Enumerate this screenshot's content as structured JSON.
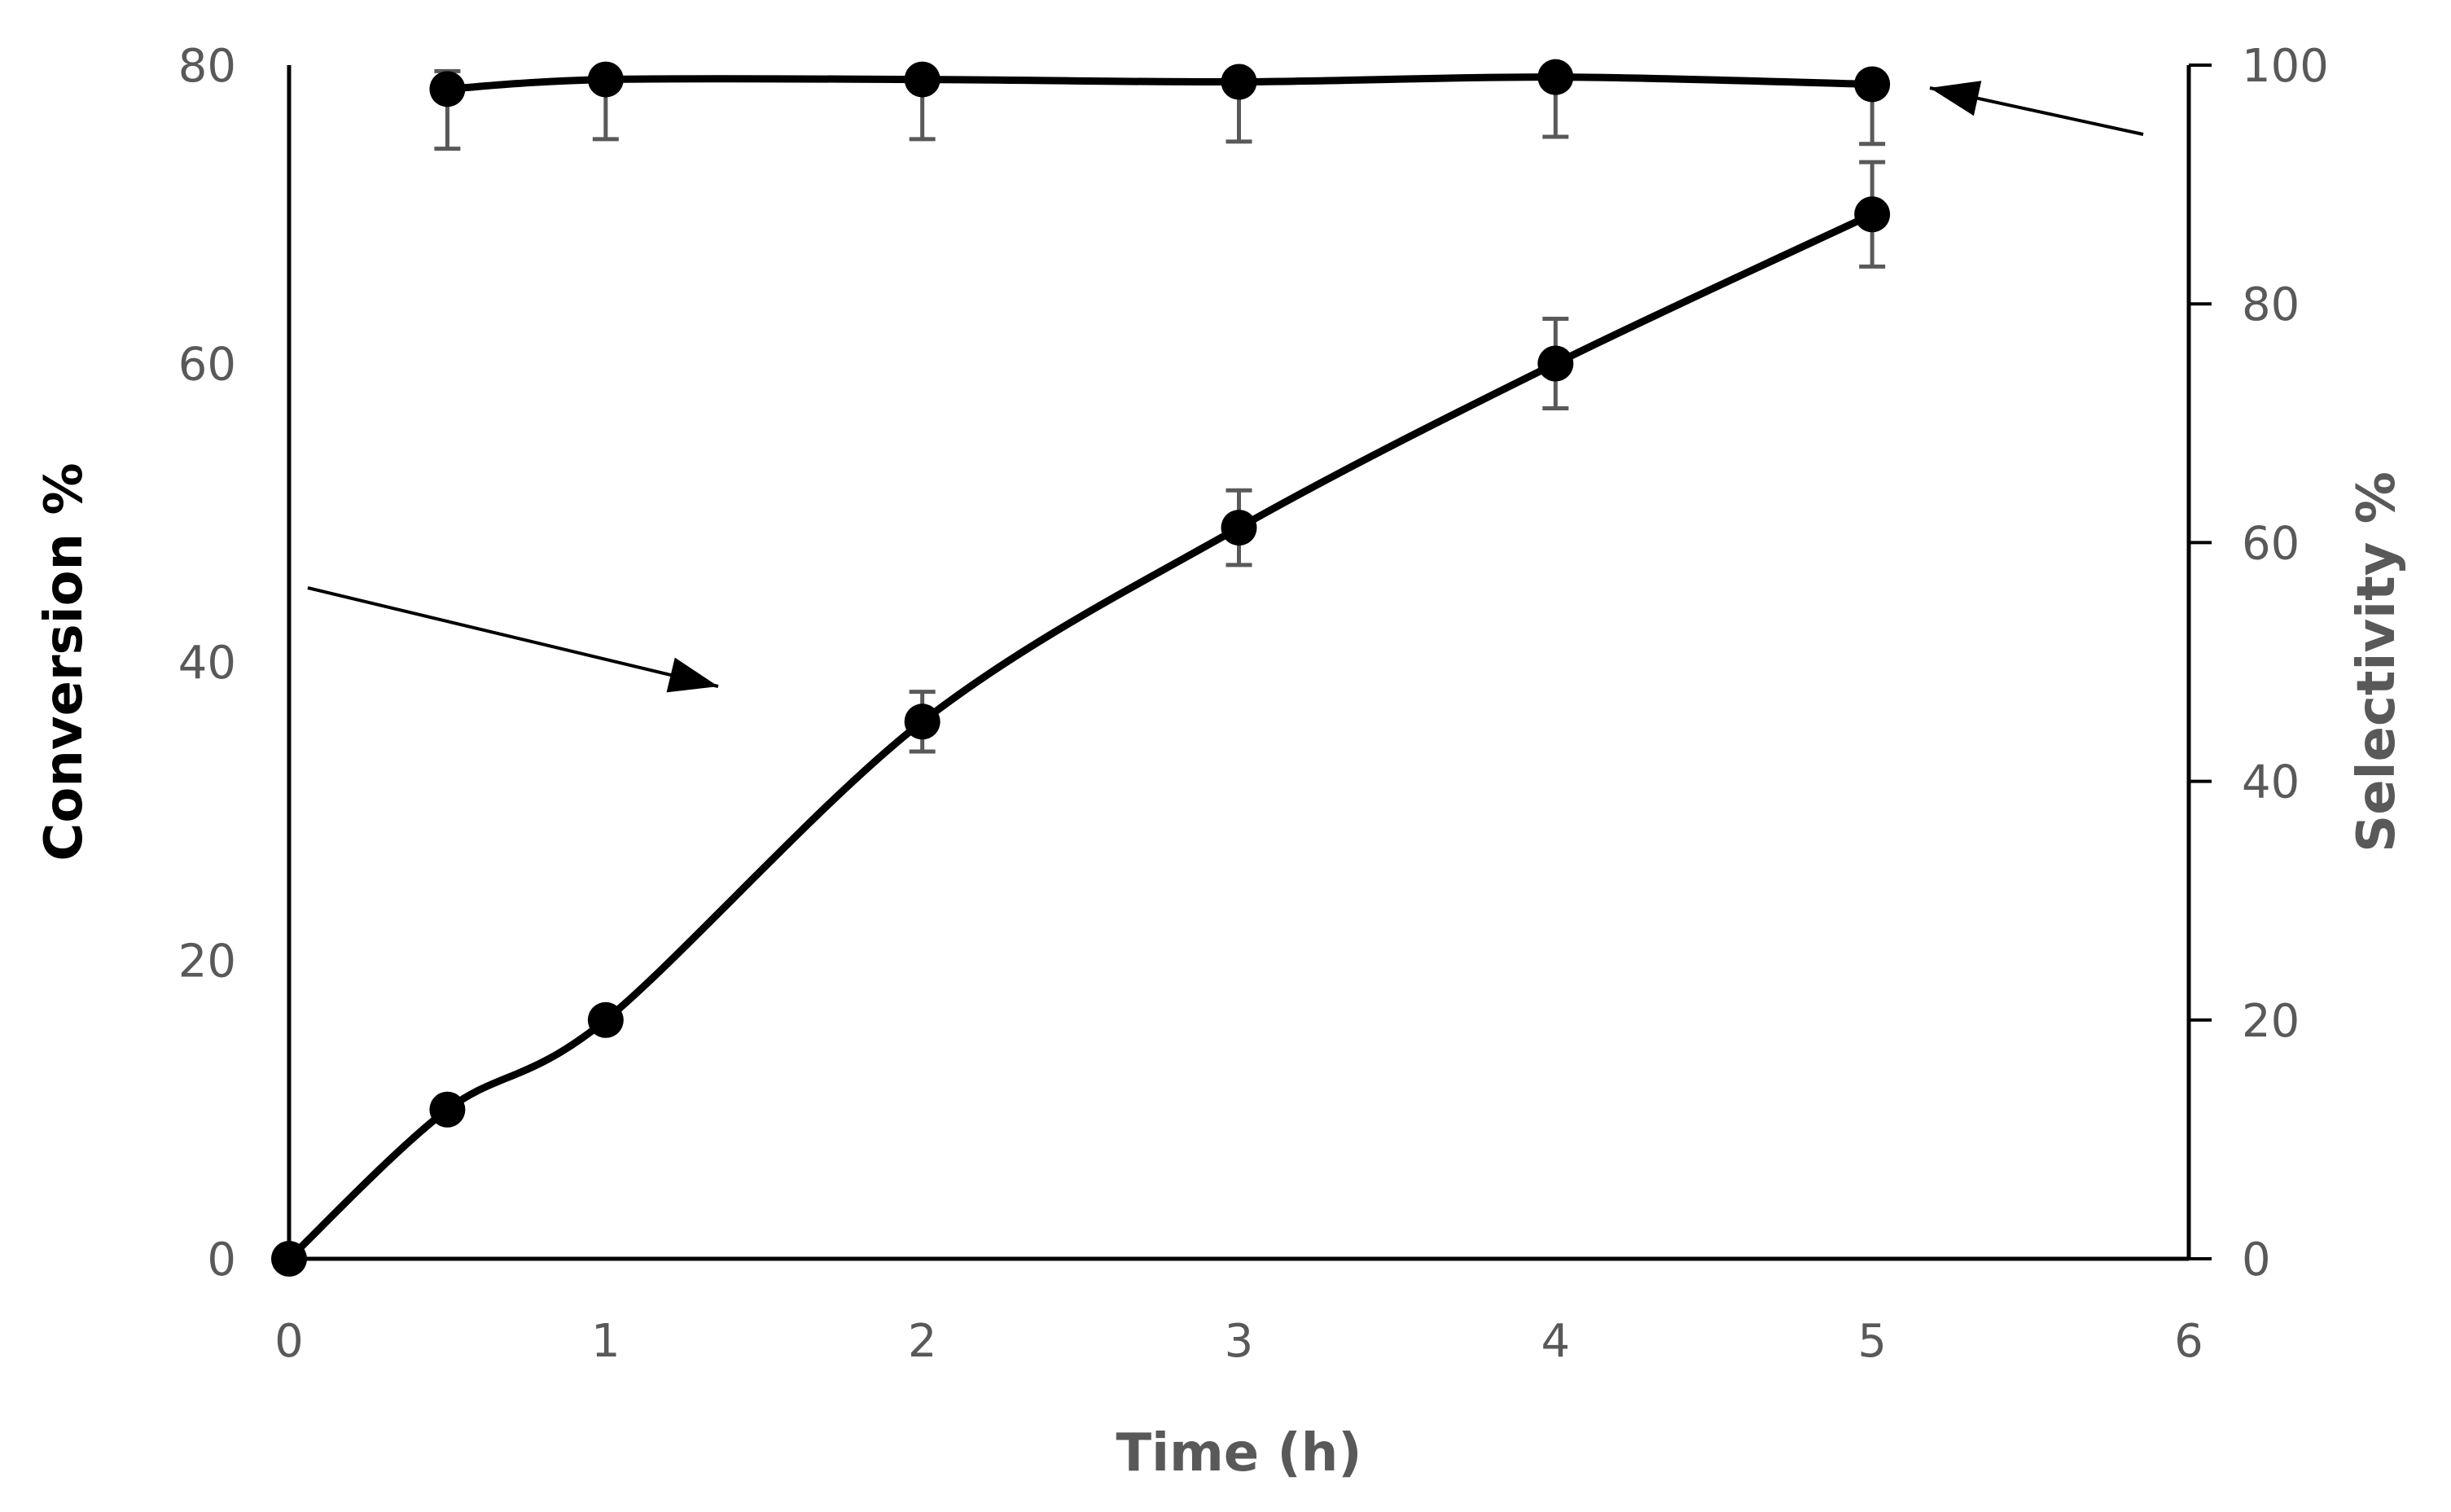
{
  "chart_data": {
    "type": "line",
    "title": "",
    "xlabel": "Time (h)",
    "ylabel": "Conversion %",
    "y2label": "Selectivity %",
    "xlim": [
      0,
      6
    ],
    "ylim": [
      0,
      80
    ],
    "y2lim": [
      0,
      100
    ],
    "x_ticks": [
      "0",
      "1",
      "2",
      "3",
      "4",
      "5",
      "6"
    ],
    "y_ticks": [
      "0",
      "20",
      "40",
      "60",
      "80"
    ],
    "y2_ticks": [
      "0",
      "20",
      "40",
      "60",
      "80",
      "100"
    ],
    "grid": false,
    "legend": "none",
    "series": [
      {
        "name": "Conversion",
        "axis": "left",
        "x": [
          0,
          0.5,
          1,
          2,
          3,
          4,
          5
        ],
        "values": [
          0,
          10,
          16,
          36,
          49,
          60,
          70
        ],
        "error_low": [
          0,
          0,
          0,
          2,
          2.5,
          3,
          3.5
        ],
        "error_high": [
          0,
          0,
          0,
          2,
          2.5,
          3,
          3.5
        ]
      },
      {
        "name": "Selectivity",
        "axis": "right",
        "x": [
          0.5,
          1,
          2,
          3,
          4,
          5
        ],
        "values": [
          98,
          98.8,
          98.8,
          98.6,
          99,
          98.4
        ],
        "error_low": [
          5,
          5,
          5,
          5,
          5,
          5
        ],
        "error_high": [
          1.5,
          0.5,
          0.5,
          0.5,
          0.5,
          0.5
        ]
      }
    ],
    "annotations": [
      {
        "type": "arrow",
        "label": "",
        "points_to": "Conversion",
        "from": "left axis"
      },
      {
        "type": "arrow",
        "label": "",
        "points_to": "Selectivity",
        "from": "right axis"
      }
    ],
    "colors": {
      "line": "#000000",
      "marker": "#000000",
      "error_bar": "#595959",
      "tick_text": "#595959",
      "left_title": "#000000",
      "right_title": "#595959",
      "x_title": "#595959"
    }
  }
}
